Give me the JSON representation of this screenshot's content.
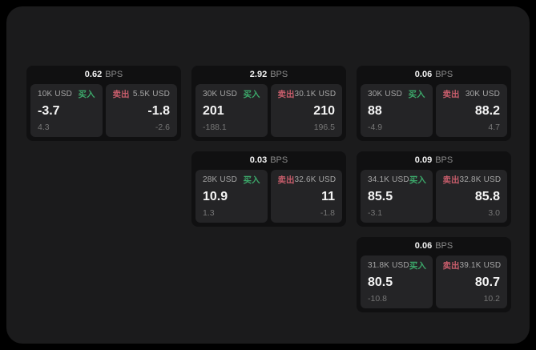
{
  "labels": {
    "bps_unit": "BPS",
    "buy": "买入",
    "sell": "卖出"
  },
  "colors": {
    "buy": "#3ca86a",
    "sell": "#c75d6b",
    "window_bg": "#1b1b1c",
    "card_bg": "#101011",
    "panel_bg": "#242426"
  },
  "cards": [
    {
      "row": 1,
      "col": 1,
      "bps": "0.62",
      "buy": {
        "size": "10K USD",
        "price": "-3.7",
        "delta": "4.3"
      },
      "sell": {
        "size": "5.5K USD",
        "price": "-1.8",
        "delta": "-2.6"
      }
    },
    {
      "row": 1,
      "col": 2,
      "bps": "2.92",
      "buy": {
        "size": "30K USD",
        "price": "201",
        "delta": "-188.1"
      },
      "sell": {
        "size": "30.1K USD",
        "price": "210",
        "delta": "196.5"
      }
    },
    {
      "row": 1,
      "col": 3,
      "bps": "0.06",
      "buy": {
        "size": "30K USD",
        "price": "88",
        "delta": "-4.9"
      },
      "sell": {
        "size": "30K USD",
        "price": "88.2",
        "delta": "4.7"
      }
    },
    {
      "row": 2,
      "col": 2,
      "bps": "0.03",
      "buy": {
        "size": "28K USD",
        "price": "10.9",
        "delta": "1.3"
      },
      "sell": {
        "size": "32.6K USD",
        "price": "11",
        "delta": "-1.8"
      }
    },
    {
      "row": 2,
      "col": 3,
      "bps": "0.09",
      "buy": {
        "size": "34.1K USD",
        "price": "85.5",
        "delta": "-3.1"
      },
      "sell": {
        "size": "32.8K USD",
        "price": "85.8",
        "delta": "3.0"
      }
    },
    {
      "row": 3,
      "col": 3,
      "bps": "0.06",
      "buy": {
        "size": "31.8K USD",
        "price": "80.5",
        "delta": "-10.8"
      },
      "sell": {
        "size": "39.1K USD",
        "price": "80.7",
        "delta": "10.2"
      }
    }
  ]
}
